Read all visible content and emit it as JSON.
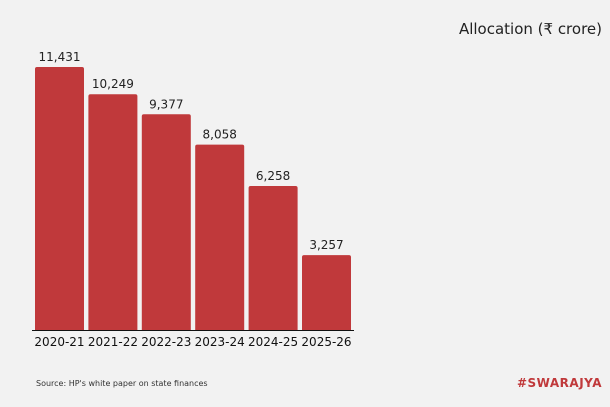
{
  "chart_data": {
    "type": "bar",
    "categories": [
      "2020-21",
      "2021-22",
      "2022-23",
      "2023-24",
      "2024-25",
      "2025-26"
    ],
    "series": [
      {
        "name": "Allocation (₹ crore)",
        "values": [
          11431,
          10249,
          9377,
          8058,
          6258,
          3257
        ]
      }
    ],
    "value_labels": [
      "11,431",
      "10,249",
      "9,377",
      "8,058",
      "6,258",
      "3,257"
    ],
    "ylim": [
      0,
      11431
    ],
    "grid": false,
    "legend": "top-right",
    "bar_color": "#c0393b"
  },
  "legend_label": "Allocation (₹ crore)",
  "source_note": "Source: HP's white paper on state finances",
  "brand": "#SWARAJYA",
  "brand_color": "#c0393b"
}
